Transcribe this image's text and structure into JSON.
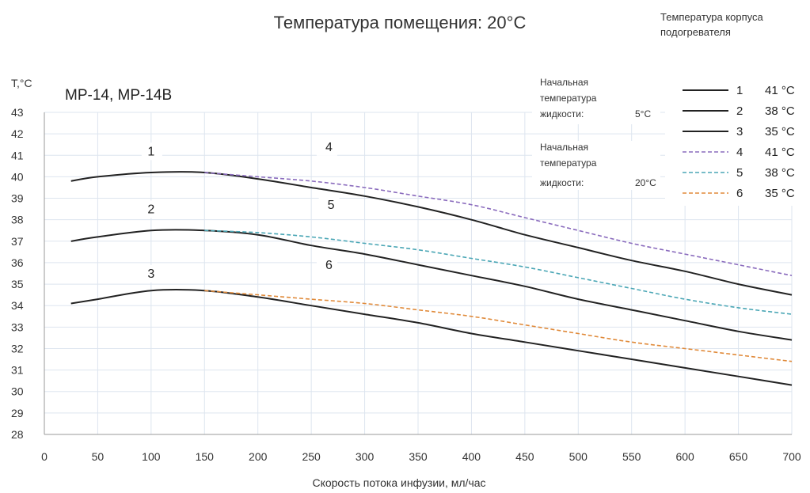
{
  "header": {
    "title": "Температура помещения: 20°C",
    "model": "MP-14, MP-14B",
    "legend_title_line1": "Температура корпуса",
    "legend_title_line2": "подогревателя"
  },
  "initial_temp_blocks": [
    {
      "line1": "Начальная",
      "line2": "температура",
      "line3": "жидкости:",
      "value": "5°C"
    },
    {
      "line1": "Начальная",
      "line2": "температура",
      "line3": "жидкости:",
      "value": "20°C"
    }
  ],
  "chart_data": {
    "type": "line",
    "title": "Температура помещения: 20°C",
    "xlabel": "Скорость потока инфузии, мл/час",
    "ylabel": "T,°C",
    "xlim": [
      0,
      700
    ],
    "ylim": [
      28,
      43
    ],
    "x_ticks": [
      0,
      50,
      100,
      150,
      200,
      250,
      300,
      350,
      400,
      450,
      500,
      550,
      600,
      650,
      700
    ],
    "y_ticks": [
      28,
      29,
      30,
      31,
      32,
      33,
      34,
      35,
      36,
      37,
      38,
      39,
      40,
      41,
      42,
      43
    ],
    "grid": true,
    "legend_position": "top-right",
    "series": [
      {
        "name": "1",
        "label": "41 °C",
        "color": "#222222",
        "dash": false,
        "x": [
          25,
          50,
          100,
          150,
          200,
          250,
          300,
          350,
          400,
          450,
          500,
          550,
          600,
          650,
          700
        ],
        "y": [
          39.8,
          40.0,
          40.2,
          40.2,
          39.9,
          39.5,
          39.1,
          38.6,
          38.0,
          37.3,
          36.7,
          36.1,
          35.6,
          35.0,
          34.5
        ]
      },
      {
        "name": "2",
        "label": "38 °C",
        "color": "#222222",
        "dash": false,
        "x": [
          25,
          50,
          100,
          150,
          200,
          250,
          300,
          350,
          400,
          450,
          500,
          550,
          600,
          650,
          700
        ],
        "y": [
          37.0,
          37.2,
          37.5,
          37.5,
          37.3,
          36.8,
          36.4,
          35.9,
          35.4,
          34.9,
          34.3,
          33.8,
          33.3,
          32.8,
          32.4
        ]
      },
      {
        "name": "3",
        "label": "35 °C",
        "color": "#222222",
        "dash": false,
        "x": [
          25,
          50,
          100,
          150,
          200,
          250,
          300,
          350,
          400,
          450,
          500,
          550,
          600,
          650,
          700
        ],
        "y": [
          34.1,
          34.3,
          34.7,
          34.7,
          34.4,
          34.0,
          33.6,
          33.2,
          32.7,
          32.3,
          31.9,
          31.5,
          31.1,
          30.7,
          30.3
        ]
      },
      {
        "name": "4",
        "label": "41 °C",
        "color": "#8a6bbd",
        "dash": true,
        "x": [
          150,
          200,
          250,
          300,
          350,
          400,
          450,
          500,
          550,
          600,
          650,
          700
        ],
        "y": [
          40.2,
          40.0,
          39.8,
          39.5,
          39.1,
          38.7,
          38.1,
          37.5,
          36.9,
          36.4,
          35.9,
          35.4
        ]
      },
      {
        "name": "5",
        "label": "38 °C",
        "color": "#4aa6b5",
        "dash": true,
        "x": [
          150,
          200,
          250,
          300,
          350,
          400,
          450,
          500,
          550,
          600,
          650,
          700
        ],
        "y": [
          37.5,
          37.4,
          37.2,
          36.9,
          36.6,
          36.2,
          35.8,
          35.3,
          34.8,
          34.3,
          33.9,
          33.6
        ]
      },
      {
        "name": "6",
        "label": "35 °C",
        "color": "#e08a3a",
        "dash": true,
        "x": [
          150,
          200,
          250,
          300,
          350,
          400,
          450,
          500,
          550,
          600,
          650,
          700
        ],
        "y": [
          34.7,
          34.5,
          34.3,
          34.1,
          33.8,
          33.5,
          33.1,
          32.7,
          32.3,
          32.0,
          31.7,
          31.4
        ]
      }
    ]
  }
}
